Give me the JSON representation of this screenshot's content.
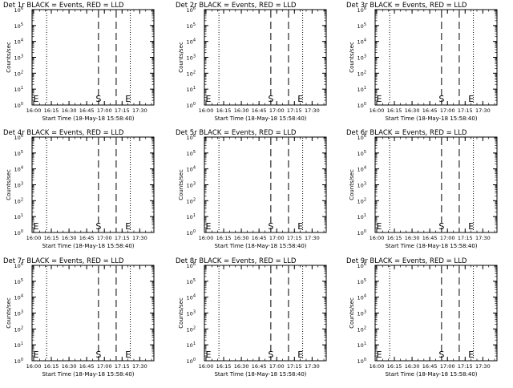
{
  "figure": {
    "background": "#ffffff",
    "foreground": "#000000"
  },
  "chart_data": [
    {
      "type": "line",
      "title": "Det 1r BLACK = Events, RED = LLD",
      "xlabel": "Start Time (18-May-18 15:58:40)",
      "ylabel": "Counts/sec",
      "x_ticks": [
        "16:00",
        "16:15",
        "16:30",
        "16:45",
        "17:00",
        "17:15",
        "17:30"
      ],
      "y_ticks": [
        "10^0",
        "10^1",
        "10^2",
        "10^3",
        "10^4",
        "10^5",
        "10^6"
      ],
      "xlim": [
        "15:58:40",
        "17:42"
      ],
      "ylim": [
        1,
        1000000
      ],
      "y_scale": "log",
      "grid": false,
      "markers": [
        {
          "label": "E",
          "x": "15:59"
        },
        {
          "label": "S",
          "x": "16:55"
        },
        {
          "label": "E",
          "x": "17:17"
        }
      ],
      "lines": [
        {
          "x": "16:11",
          "style": "dotted"
        },
        {
          "x": "16:55",
          "style": "dashed"
        },
        {
          "x": "17:10",
          "style": "dashed"
        },
        {
          "x": "17:22",
          "style": "dotted"
        }
      ]
    },
    {
      "type": "line",
      "title": "Det 2r BLACK = Events, RED = LLD",
      "xlabel": "Start Time (18-May-18 15:58:40)",
      "ylabel": "Counts/sec",
      "x_ticks": [
        "16:00",
        "16:15",
        "16:30",
        "16:45",
        "17:00",
        "17:15",
        "17:30"
      ],
      "y_ticks": [
        "10^0",
        "10^1",
        "10^2",
        "10^3",
        "10^4",
        "10^5",
        "10^6"
      ],
      "xlim": [
        "15:58:40",
        "17:42"
      ],
      "ylim": [
        1,
        1000000
      ],
      "y_scale": "log",
      "grid": false,
      "markers": [
        {
          "label": "E",
          "x": "15:59"
        },
        {
          "label": "S",
          "x": "16:55"
        },
        {
          "label": "E",
          "x": "17:17"
        }
      ],
      "lines": [
        {
          "x": "16:11",
          "style": "dotted"
        },
        {
          "x": "16:55",
          "style": "dashed"
        },
        {
          "x": "17:10",
          "style": "dashed"
        },
        {
          "x": "17:22",
          "style": "dotted"
        }
      ]
    },
    {
      "type": "line",
      "title": "Det 3r BLACK = Events, RED = LLD",
      "xlabel": "Start Time (18-May-18 15:58:40)",
      "ylabel": "Counts/sec",
      "x_ticks": [
        "16:00",
        "16:15",
        "16:30",
        "16:45",
        "17:00",
        "17:15",
        "17:30"
      ],
      "y_ticks": [
        "10^0",
        "10^1",
        "10^2",
        "10^3",
        "10^4",
        "10^5",
        "10^6"
      ],
      "xlim": [
        "15:58:40",
        "17:42"
      ],
      "ylim": [
        1,
        1000000
      ],
      "y_scale": "log",
      "grid": false,
      "markers": [
        {
          "label": "E",
          "x": "15:59"
        },
        {
          "label": "S",
          "x": "16:55"
        },
        {
          "label": "E",
          "x": "17:17"
        }
      ],
      "lines": [
        {
          "x": "16:11",
          "style": "dotted"
        },
        {
          "x": "16:55",
          "style": "dashed"
        },
        {
          "x": "17:10",
          "style": "dashed"
        },
        {
          "x": "17:22",
          "style": "dotted"
        }
      ]
    },
    {
      "type": "line",
      "title": "Det 4r BLACK = Events, RED = LLD",
      "xlabel": "Start Time (18-May-18 15:58:40)",
      "ylabel": "Counts/sec",
      "x_ticks": [
        "16:00",
        "16:15",
        "16:30",
        "16:45",
        "17:00",
        "17:15",
        "17:30"
      ],
      "y_ticks": [
        "10^0",
        "10^1",
        "10^2",
        "10^3",
        "10^4",
        "10^5",
        "10^6"
      ],
      "xlim": [
        "15:58:40",
        "17:42"
      ],
      "ylim": [
        1,
        1000000
      ],
      "y_scale": "log",
      "grid": false,
      "markers": [
        {
          "label": "E",
          "x": "15:59"
        },
        {
          "label": "S",
          "x": "16:55"
        },
        {
          "label": "E",
          "x": "17:17"
        }
      ],
      "lines": [
        {
          "x": "16:11",
          "style": "dotted"
        },
        {
          "x": "16:55",
          "style": "dashed"
        },
        {
          "x": "17:10",
          "style": "dashed"
        },
        {
          "x": "17:22",
          "style": "dotted"
        }
      ]
    },
    {
      "type": "line",
      "title": "Det 5r BLACK = Events, RED = LLD",
      "xlabel": "Start Time (18-May-18 15:58:40)",
      "ylabel": "Counts/sec",
      "x_ticks": [
        "16:00",
        "16:15",
        "16:30",
        "16:45",
        "17:00",
        "17:15",
        "17:30"
      ],
      "y_ticks": [
        "10^0",
        "10^1",
        "10^2",
        "10^3",
        "10^4",
        "10^5",
        "10^6"
      ],
      "xlim": [
        "15:58:40",
        "17:42"
      ],
      "ylim": [
        1,
        1000000
      ],
      "y_scale": "log",
      "grid": false,
      "markers": [
        {
          "label": "E",
          "x": "15:59"
        },
        {
          "label": "S",
          "x": "16:55"
        },
        {
          "label": "E",
          "x": "17:17"
        }
      ],
      "lines": [
        {
          "x": "16:11",
          "style": "dotted"
        },
        {
          "x": "16:55",
          "style": "dashed"
        },
        {
          "x": "17:10",
          "style": "dashed"
        },
        {
          "x": "17:22",
          "style": "dotted"
        }
      ]
    },
    {
      "type": "line",
      "title": "Det 6r BLACK = Events, RED = LLD",
      "xlabel": "Start Time (18-May-18 15:58:40)",
      "ylabel": "Counts/sec",
      "x_ticks": [
        "16:00",
        "16:15",
        "16:30",
        "16:45",
        "17:00",
        "17:15",
        "17:30"
      ],
      "y_ticks": [
        "10^0",
        "10^1",
        "10^2",
        "10^3",
        "10^4",
        "10^5",
        "10^6"
      ],
      "xlim": [
        "15:58:40",
        "17:42"
      ],
      "ylim": [
        1,
        1000000
      ],
      "y_scale": "log",
      "grid": false,
      "markers": [
        {
          "label": "E",
          "x": "15:59"
        },
        {
          "label": "S",
          "x": "16:55"
        },
        {
          "label": "E",
          "x": "17:17"
        }
      ],
      "lines": [
        {
          "x": "16:11",
          "style": "dotted"
        },
        {
          "x": "16:55",
          "style": "dashed"
        },
        {
          "x": "17:10",
          "style": "dashed"
        },
        {
          "x": "17:22",
          "style": "dotted"
        }
      ]
    },
    {
      "type": "line",
      "title": "Det 7r BLACK = Events, RED = LLD",
      "xlabel": "Start Time (18-May-18 15:58:40)",
      "ylabel": "Counts/sec",
      "x_ticks": [
        "16:00",
        "16:15",
        "16:30",
        "16:45",
        "17:00",
        "17:15",
        "17:30"
      ],
      "y_ticks": [
        "10^0",
        "10^1",
        "10^2",
        "10^3",
        "10^4",
        "10^5",
        "10^6"
      ],
      "xlim": [
        "15:58:40",
        "17:42"
      ],
      "ylim": [
        1,
        1000000
      ],
      "y_scale": "log",
      "grid": false,
      "markers": [
        {
          "label": "E",
          "x": "15:59"
        },
        {
          "label": "S",
          "x": "16:55"
        },
        {
          "label": "E",
          "x": "17:17"
        }
      ],
      "lines": [
        {
          "x": "16:11",
          "style": "dotted"
        },
        {
          "x": "16:55",
          "style": "dashed"
        },
        {
          "x": "17:10",
          "style": "dashed"
        },
        {
          "x": "17:22",
          "style": "dotted"
        }
      ]
    },
    {
      "type": "line",
      "title": "Det 8r BLACK = Events, RED = LLD",
      "xlabel": "Start Time (18-May-18 15:58:40)",
      "ylabel": "Counts/sec",
      "x_ticks": [
        "16:00",
        "16:15",
        "16:30",
        "16:45",
        "17:00",
        "17:15",
        "17:30"
      ],
      "y_ticks": [
        "10^0",
        "10^1",
        "10^2",
        "10^3",
        "10^4",
        "10^5",
        "10^6"
      ],
      "xlim": [
        "15:58:40",
        "17:42"
      ],
      "ylim": [
        1,
        1000000
      ],
      "y_scale": "log",
      "grid": false,
      "markers": [
        {
          "label": "E",
          "x": "15:59"
        },
        {
          "label": "S",
          "x": "16:55"
        },
        {
          "label": "E",
          "x": "17:17"
        }
      ],
      "lines": [
        {
          "x": "16:11",
          "style": "dotted"
        },
        {
          "x": "16:55",
          "style": "dashed"
        },
        {
          "x": "17:10",
          "style": "dashed"
        },
        {
          "x": "17:22",
          "style": "dotted"
        }
      ]
    },
    {
      "type": "line",
      "title": "Det 9r BLACK = Events, RED = LLD",
      "xlabel": "Start Time (18-May-18 15:58:40)",
      "ylabel": "Counts/sec",
      "x_ticks": [
        "16:00",
        "16:15",
        "16:30",
        "16:45",
        "17:00",
        "17:15",
        "17:30"
      ],
      "y_ticks": [
        "10^0",
        "10^1",
        "10^2",
        "10^3",
        "10^4",
        "10^5",
        "10^6"
      ],
      "xlim": [
        "15:58:40",
        "17:42"
      ],
      "ylim": [
        1,
        1000000
      ],
      "y_scale": "log",
      "grid": false,
      "markers": [
        {
          "label": "E",
          "x": "15:59"
        },
        {
          "label": "S",
          "x": "16:55"
        },
        {
          "label": "E",
          "x": "17:17"
        }
      ],
      "lines": [
        {
          "x": "16:11",
          "style": "dotted"
        },
        {
          "x": "16:55",
          "style": "dashed"
        },
        {
          "x": "17:10",
          "style": "dashed"
        },
        {
          "x": "17:22",
          "style": "dotted"
        }
      ]
    }
  ]
}
